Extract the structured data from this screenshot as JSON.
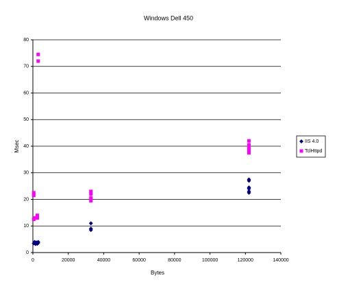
{
  "chart_data": {
    "type": "scatter",
    "title": "Windows Dell 450",
    "x_label": "Bytes",
    "y_label": "Msec",
    "xlim": [
      0,
      140000
    ],
    "xticks": [
      0,
      20000,
      40000,
      60000,
      80000,
      100000,
      120000,
      140000
    ],
    "ylim": [
      0,
      80
    ],
    "yticks": [
      0,
      10,
      20,
      30,
      40,
      50,
      60,
      70,
      80
    ],
    "grid": true,
    "legend": "right",
    "series": [
      {
        "name": "IIS 4.0",
        "color": "#000080",
        "marker": "diamond",
        "x": [
          500,
          1000,
          1500,
          2000,
          2500,
          3000,
          3000,
          32768,
          32768,
          32768,
          122000,
          122000,
          122000,
          122000,
          122000,
          122000
        ],
        "values": [
          3.5,
          4,
          3.2,
          3.8,
          3.3,
          3.6,
          4,
          8.5,
          9,
          11,
          22.5,
          23,
          24,
          24.5,
          27,
          27.5
        ]
      },
      {
        "name": "TclHttpd",
        "color": "#ff00ff",
        "marker": "square",
        "x": [
          500,
          500,
          500,
          1000,
          2500,
          2500,
          3000,
          3000,
          32768,
          32768,
          32768,
          32768,
          122000,
          122000,
          122000,
          122000,
          122000
        ],
        "values": [
          21.5,
          22.5,
          12.5,
          13,
          13,
          14,
          72,
          74.5,
          19.5,
          20.5,
          22,
          23,
          37.5,
          38.5,
          39.5,
          40.5,
          42
        ]
      }
    ]
  }
}
